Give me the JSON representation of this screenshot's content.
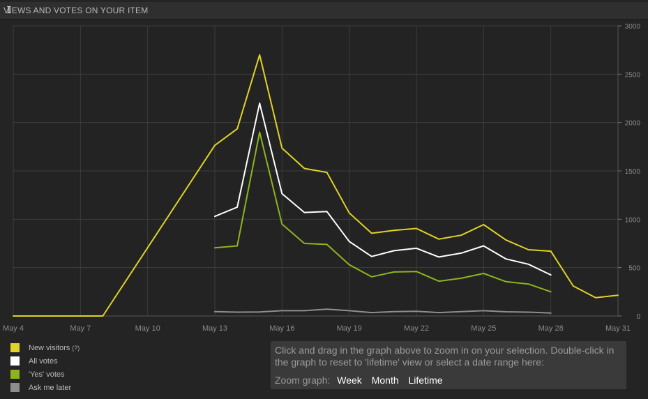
{
  "header": {
    "title": "Views and votes on your item",
    "cursor_icon": "text-cursor-icon"
  },
  "chart_data": {
    "type": "line",
    "title": "Views and votes on your item",
    "x_tick_labels": [
      "May 4",
      "May 7",
      "May 10",
      "May 13",
      "May 16",
      "May 19",
      "May 22",
      "May 25",
      "May 28",
      "May 31"
    ],
    "xlim": [
      4,
      31
    ],
    "ylim": [
      0,
      3000
    ],
    "y_ticks": [
      0,
      500,
      1000,
      1500,
      2000,
      2500,
      3000
    ],
    "y_tick_labels": [
      "0",
      "500",
      "1000",
      "1500",
      "2000",
      "2500",
      "3000"
    ],
    "grid": true,
    "series": [
      {
        "name": "New visitors",
        "color": "#e1d226",
        "x": [
          4,
          5,
          6,
          7,
          8,
          13,
          14,
          15,
          16,
          17,
          18,
          19,
          20,
          21,
          22,
          23,
          24,
          25,
          26,
          27,
          28,
          29,
          30,
          31
        ],
        "values": [
          0,
          0,
          0,
          0,
          0,
          1765,
          1935,
          2700,
          1735,
          1525,
          1485,
          1065,
          855,
          885,
          905,
          795,
          835,
          945,
          785,
          685,
          670,
          310,
          190,
          215
        ]
      },
      {
        "name": "All votes",
        "color": "#ffffff",
        "x": [
          13,
          14,
          15,
          16,
          17,
          18,
          19,
          20,
          21,
          22,
          23,
          24,
          25,
          26,
          27,
          28
        ],
        "values": [
          1030,
          1125,
          2200,
          1265,
          1070,
          1080,
          770,
          615,
          675,
          700,
          610,
          650,
          725,
          590,
          535,
          425
        ]
      },
      {
        "name": "'Yes' votes",
        "color": "#8db41e",
        "x": [
          13,
          14,
          15,
          16,
          17,
          18,
          19,
          20,
          21,
          22,
          23,
          24,
          25,
          26,
          27,
          28
        ],
        "values": [
          705,
          725,
          1900,
          950,
          750,
          740,
          530,
          405,
          455,
          460,
          360,
          390,
          440,
          355,
          330,
          250
        ]
      },
      {
        "name": "Ask me later",
        "color": "#8e8e8e",
        "x": [
          13,
          14,
          15,
          16,
          17,
          18,
          19,
          20,
          21,
          22,
          23,
          24,
          25,
          26,
          27,
          28
        ],
        "values": [
          45,
          40,
          42,
          55,
          55,
          70,
          55,
          35,
          45,
          48,
          35,
          45,
          55,
          43,
          40,
          30
        ]
      }
    ]
  },
  "legend": [
    {
      "label": "New visitors",
      "help": "(?)",
      "color": "#e1d226"
    },
    {
      "label": "All votes",
      "help": "",
      "color": "#ffffff"
    },
    {
      "label": "'Yes' votes",
      "help": "",
      "color": "#8db41e"
    },
    {
      "label": "Ask me later",
      "help": "",
      "color": "#8e8e8e"
    }
  ],
  "zoom": {
    "instructions": "Click and drag in the graph above to zoom in on your selection. Double-click in the graph to reset to 'lifetime' view or select a date range here:",
    "label": "Zoom graph:",
    "options": [
      "Week",
      "Month",
      "Lifetime"
    ]
  }
}
